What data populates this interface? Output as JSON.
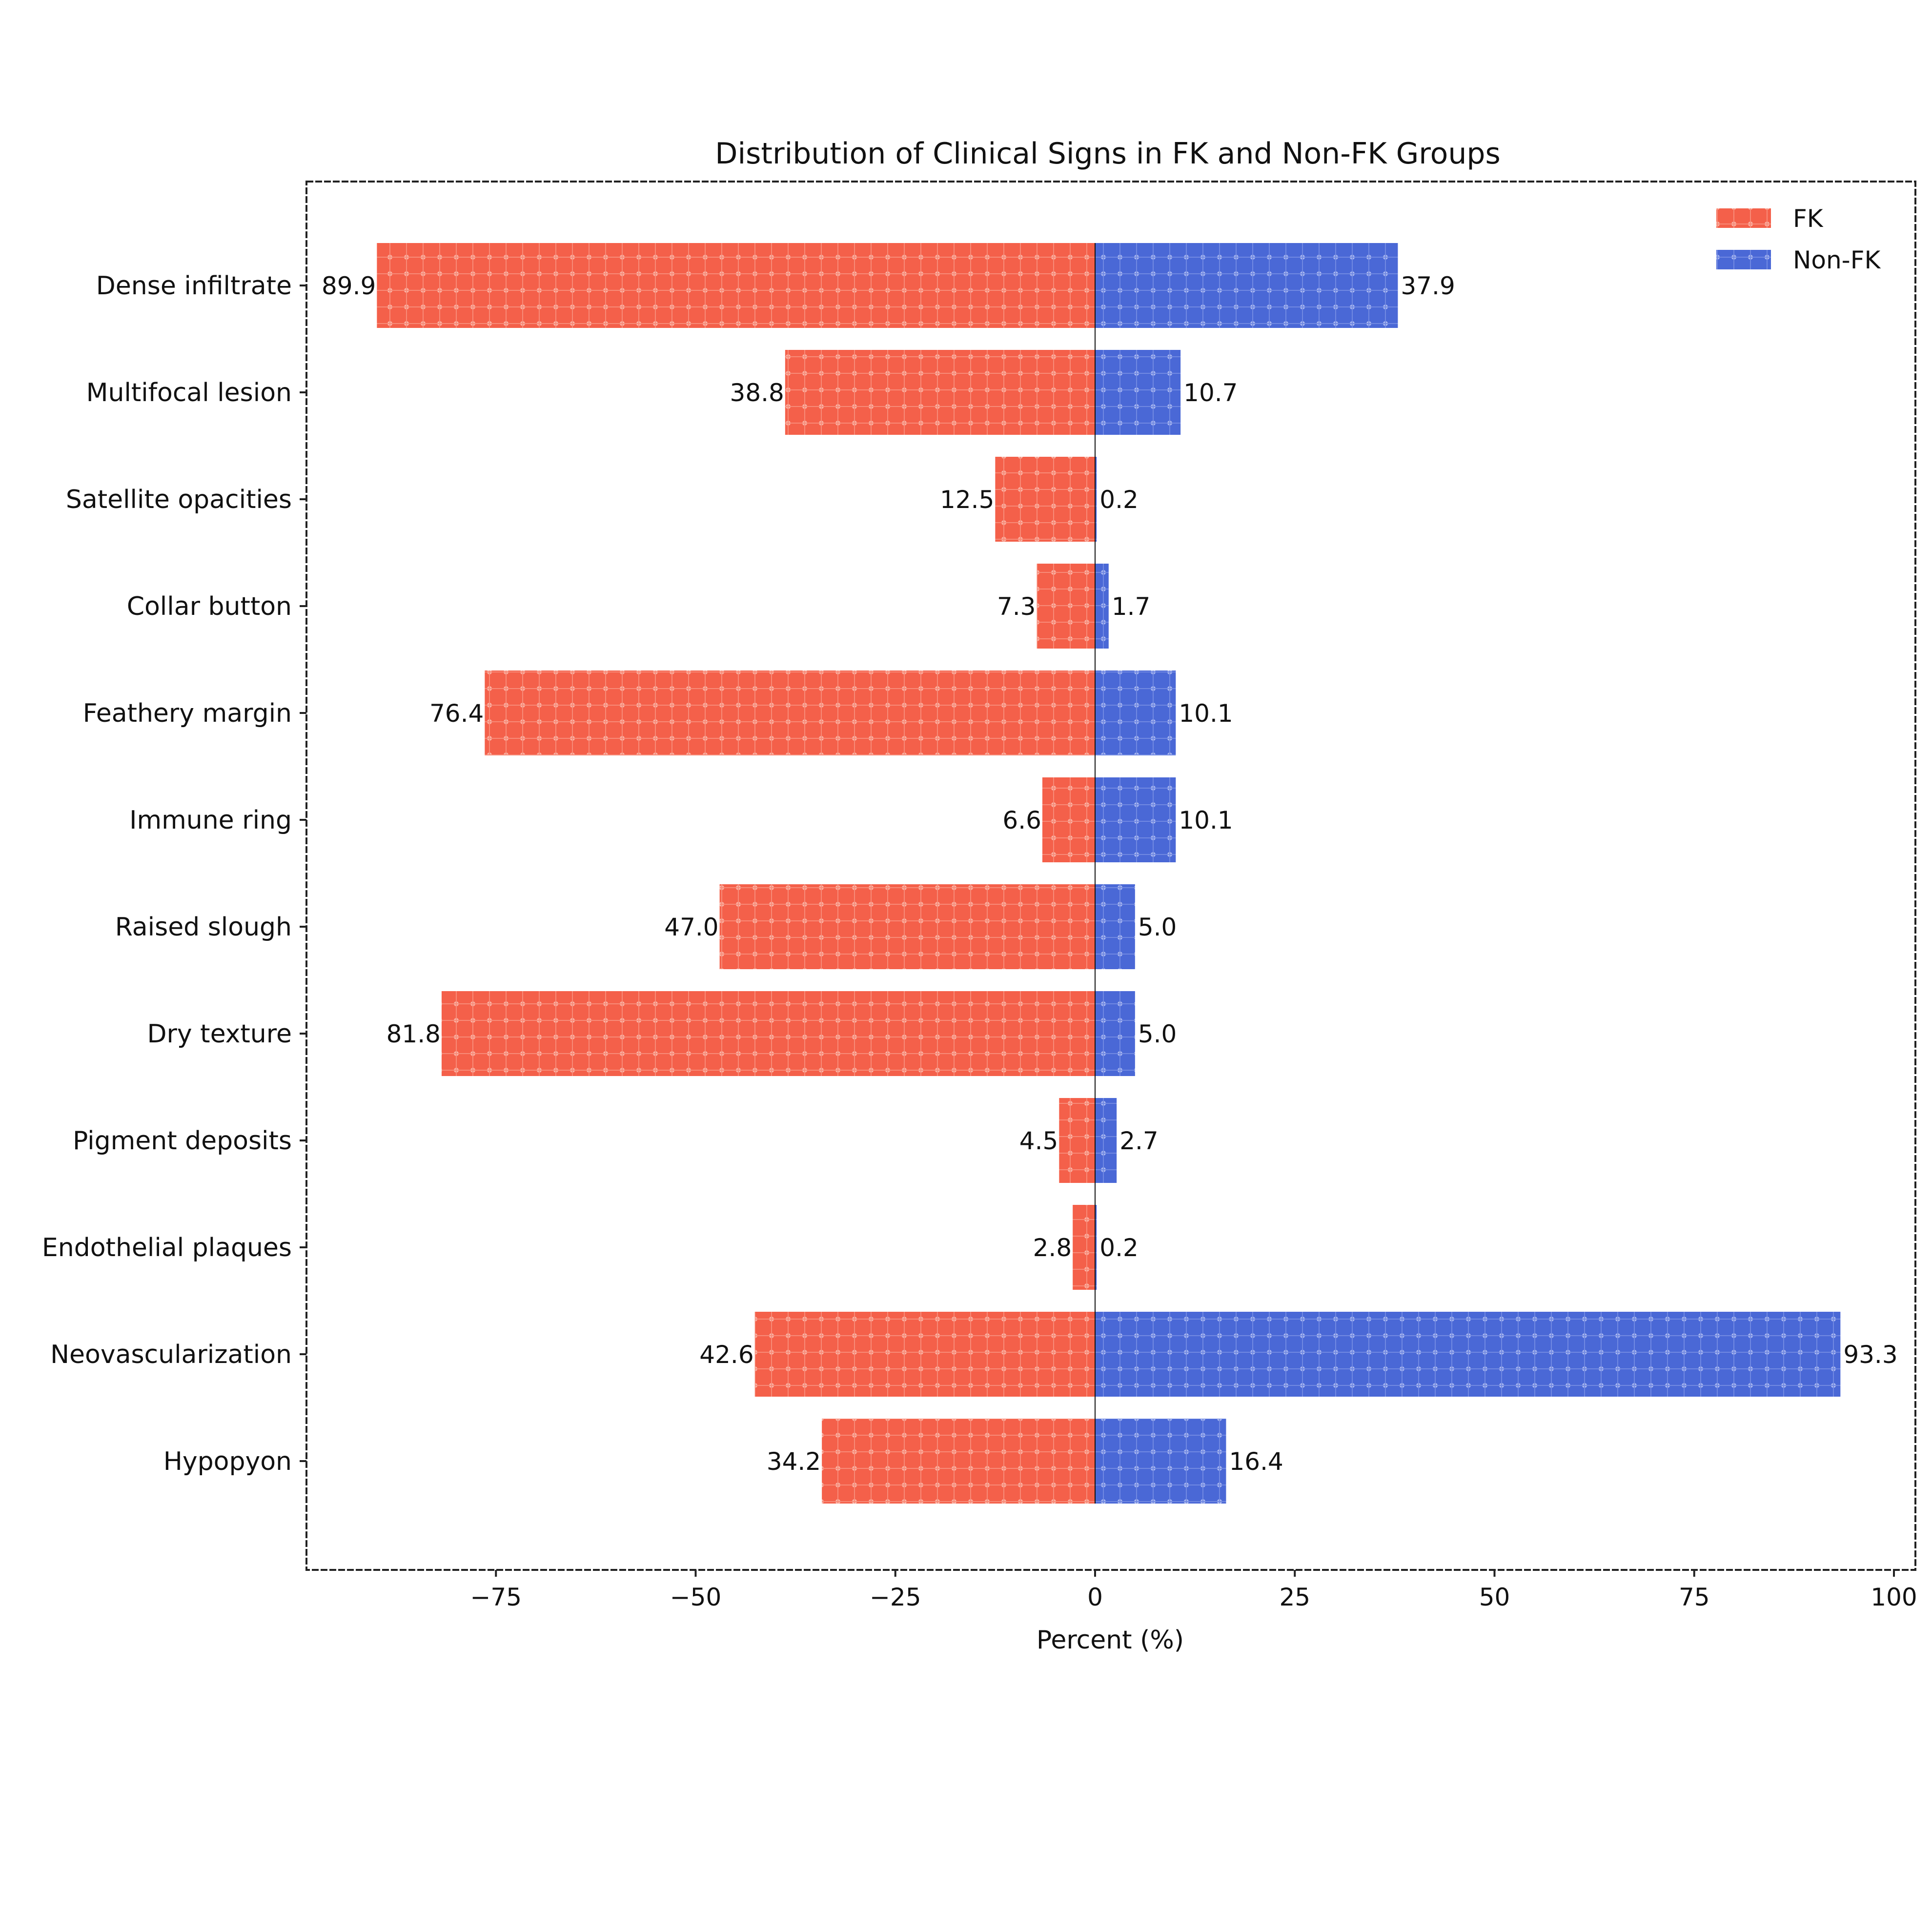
{
  "chart_data": {
    "type": "bar",
    "orientation": "horizontal-diverging",
    "title": "Distribution of Clinical Signs in FK and Non-FK Groups",
    "xlabel": "Percent (%)",
    "ylabel": "",
    "xlim": [
      -100,
      102
    ],
    "xticks": [
      -75,
      -50,
      -25,
      0,
      25,
      50,
      75,
      100
    ],
    "xtick_labels": [
      "−75",
      "−50",
      "−25",
      "0",
      "25",
      "50",
      "75",
      "100"
    ],
    "categories": [
      "Dense infiltrate",
      "Multifocal lesion",
      "Satellite opacities",
      "Collar button",
      "Feathery margin",
      "Immune ring",
      "Raised slough",
      "Dry texture",
      "Pigment deposits",
      "Endothelial plaques",
      "Neovascularization",
      "Hypopyon"
    ],
    "series": [
      {
        "name": "FK",
        "color": "#f4604a",
        "direction": "negative",
        "values": [
          89.9,
          38.8,
          12.5,
          7.3,
          76.4,
          6.6,
          47.0,
          81.8,
          4.5,
          2.8,
          42.6,
          34.2
        ],
        "labels": [
          "89.9",
          "38.8",
          "12.5",
          "7.3",
          "76.4",
          "6.6",
          "47.0",
          "81.8",
          "4.5",
          "2.8",
          "42.6",
          "34.2"
        ]
      },
      {
        "name": "Non-FK",
        "color": "#4a68d6",
        "direction": "positive",
        "values": [
          37.9,
          10.7,
          0.2,
          1.7,
          10.1,
          10.1,
          5.0,
          5.0,
          2.7,
          0.2,
          93.3,
          16.4
        ],
        "labels": [
          "37.9",
          "10.7",
          "0.2",
          "1.7",
          "10.1",
          "10.1",
          "5.0",
          "5.0",
          "2.7",
          "0.2",
          "93.3",
          "16.4"
        ]
      }
    ],
    "legend": {
      "position": "top-right",
      "entries": [
        "FK",
        "Non-FK"
      ]
    },
    "grid": false
  }
}
